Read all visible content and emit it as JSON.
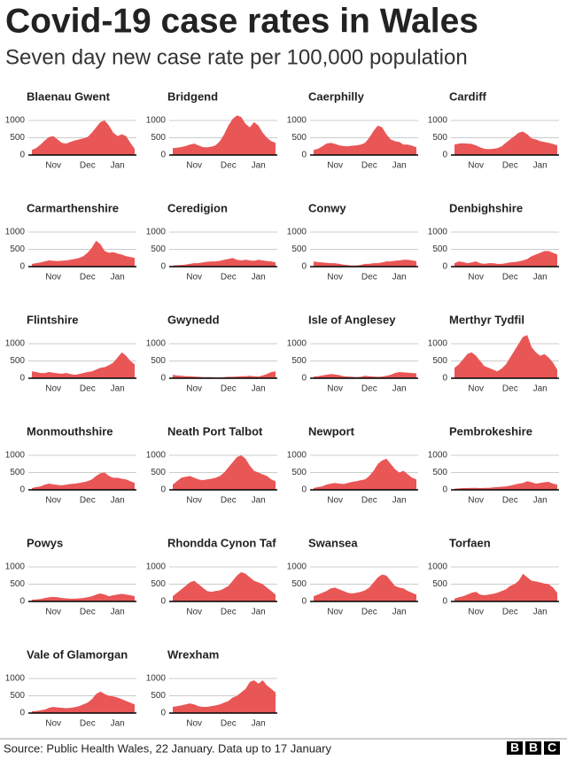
{
  "chart_data": {
    "type": "area",
    "title": "Covid-19 case rates in Wales",
    "subtitle": "Seven day new case rate per 100,000 population",
    "categories": [
      null,
      null,
      null,
      null,
      null,
      "Nov",
      null,
      null,
      null,
      null,
      null,
      null,
      null,
      "Dec",
      null,
      null,
      null,
      null,
      null,
      null,
      "Jan",
      null,
      null,
      null,
      null
    ],
    "ylim": [
      0,
      1300
    ],
    "yticks": [
      0,
      500,
      1000
    ],
    "grid": true,
    "color": "#e95656",
    "series": [
      {
        "name": "Blaenau Gwent",
        "values": [
          150,
          200,
          300,
          420,
          520,
          550,
          450,
          350,
          330,
          380,
          420,
          450,
          480,
          520,
          650,
          800,
          950,
          1000,
          850,
          650,
          550,
          600,
          550,
          350,
          180
        ]
      },
      {
        "name": "Bridgend",
        "values": [
          200,
          210,
          230,
          260,
          300,
          330,
          280,
          230,
          220,
          240,
          280,
          400,
          600,
          850,
          1050,
          1150,
          1100,
          900,
          800,
          950,
          850,
          650,
          500,
          400,
          350
        ]
      },
      {
        "name": "Caerphilly",
        "values": [
          150,
          180,
          250,
          330,
          350,
          320,
          280,
          260,
          250,
          270,
          280,
          300,
          350,
          500,
          700,
          850,
          800,
          600,
          450,
          400,
          380,
          300,
          300,
          270,
          220
        ]
      },
      {
        "name": "Cardiff",
        "values": [
          300,
          330,
          340,
          330,
          320,
          280,
          220,
          180,
          170,
          180,
          200,
          250,
          350,
          450,
          550,
          650,
          680,
          600,
          480,
          450,
          400,
          380,
          350,
          320,
          280
        ]
      },
      {
        "name": "Carmarthenshire",
        "values": [
          80,
          100,
          120,
          150,
          180,
          170,
          160,
          170,
          180,
          200,
          220,
          250,
          300,
          400,
          550,
          750,
          650,
          450,
          400,
          420,
          380,
          350,
          300,
          280,
          250
        ]
      },
      {
        "name": "Ceredigion",
        "values": [
          30,
          40,
          50,
          60,
          80,
          100,
          100,
          120,
          140,
          150,
          150,
          170,
          200,
          220,
          250,
          200,
          180,
          200,
          180,
          170,
          200,
          180,
          160,
          150,
          120
        ]
      },
      {
        "name": "Conwy",
        "values": [
          150,
          130,
          120,
          110,
          100,
          100,
          80,
          60,
          40,
          30,
          30,
          50,
          80,
          80,
          100,
          100,
          120,
          150,
          150,
          170,
          180,
          200,
          200,
          180,
          160
        ]
      },
      {
        "name": "Denbighshire",
        "values": [
          100,
          150,
          130,
          100,
          120,
          150,
          100,
          80,
          100,
          100,
          80,
          80,
          100,
          120,
          130,
          150,
          180,
          220,
          300,
          350,
          400,
          450,
          450,
          400,
          350
        ]
      },
      {
        "name": "Flintshire",
        "values": [
          200,
          180,
          150,
          150,
          180,
          160,
          140,
          130,
          150,
          120,
          100,
          120,
          150,
          180,
          200,
          250,
          300,
          320,
          380,
          450,
          600,
          750,
          650,
          500,
          400
        ]
      },
      {
        "name": "Gwynedd",
        "values": [
          100,
          80,
          70,
          60,
          60,
          50,
          40,
          30,
          30,
          30,
          20,
          20,
          30,
          40,
          40,
          50,
          60,
          60,
          70,
          60,
          50,
          80,
          120,
          180,
          200
        ]
      },
      {
        "name": "Isle of Anglesey",
        "values": [
          50,
          60,
          80,
          100,
          120,
          110,
          90,
          60,
          50,
          40,
          30,
          40,
          70,
          60,
          50,
          40,
          50,
          70,
          100,
          150,
          180,
          170,
          160,
          150,
          140
        ]
      },
      {
        "name": "Merthyr Tydfil",
        "values": [
          300,
          400,
          550,
          700,
          750,
          650,
          500,
          350,
          300,
          250,
          200,
          280,
          400,
          600,
          800,
          1000,
          1200,
          1250,
          900,
          750,
          650,
          700,
          600,
          450,
          250
        ]
      },
      {
        "name": "Monmouthshire",
        "values": [
          50,
          80,
          100,
          150,
          180,
          160,
          140,
          130,
          150,
          170,
          180,
          200,
          220,
          250,
          300,
          400,
          480,
          500,
          400,
          350,
          350,
          320,
          300,
          250,
          200
        ]
      },
      {
        "name": "Neath Port Talbot",
        "values": [
          150,
          250,
          350,
          380,
          400,
          350,
          300,
          280,
          300,
          320,
          350,
          400,
          500,
          650,
          800,
          950,
          1000,
          900,
          700,
          550,
          500,
          450,
          400,
          300,
          250
        ]
      },
      {
        "name": "Newport",
        "values": [
          50,
          80,
          100,
          150,
          180,
          200,
          180,
          170,
          200,
          230,
          250,
          280,
          300,
          400,
          550,
          750,
          850,
          900,
          750,
          600,
          500,
          550,
          450,
          350,
          300
        ]
      },
      {
        "name": "Pembrokeshire",
        "values": [
          30,
          40,
          50,
          50,
          60,
          60,
          50,
          60,
          60,
          70,
          80,
          90,
          100,
          120,
          150,
          180,
          200,
          250,
          220,
          180,
          200,
          220,
          230,
          180,
          150
        ]
      },
      {
        "name": "Powys",
        "values": [
          50,
          60,
          70,
          100,
          120,
          130,
          120,
          100,
          90,
          80,
          80,
          90,
          100,
          120,
          150,
          200,
          230,
          200,
          150,
          180,
          200,
          220,
          200,
          180,
          150
        ]
      },
      {
        "name": "Rhondda Cynon Taf",
        "values": [
          150,
          250,
          350,
          450,
          550,
          600,
          500,
          400,
          300,
          280,
          300,
          320,
          380,
          450,
          600,
          750,
          850,
          800,
          700,
          600,
          550,
          500,
          400,
          300,
          200
        ]
      },
      {
        "name": "Swansea",
        "values": [
          150,
          200,
          250,
          300,
          380,
          400,
          350,
          300,
          250,
          230,
          250,
          280,
          320,
          400,
          550,
          700,
          780,
          750,
          600,
          450,
          400,
          380,
          300,
          250,
          200
        ]
      },
      {
        "name": "Torfaen",
        "values": [
          80,
          120,
          150,
          200,
          250,
          280,
          200,
          180,
          200,
          220,
          250,
          300,
          350,
          450,
          500,
          600,
          800,
          700,
          600,
          580,
          550,
          520,
          500,
          400,
          250
        ]
      },
      {
        "name": "Vale of Glamorgan",
        "values": [
          50,
          60,
          80,
          100,
          150,
          180,
          160,
          150,
          140,
          150,
          170,
          200,
          250,
          300,
          400,
          550,
          620,
          550,
          500,
          480,
          450,
          400,
          350,
          300,
          250
        ]
      },
      {
        "name": "Wrexham",
        "values": [
          180,
          200,
          220,
          250,
          280,
          250,
          200,
          180,
          180,
          200,
          220,
          250,
          300,
          350,
          450,
          500,
          600,
          700,
          900,
          950,
          850,
          950,
          800,
          700,
          600
        ]
      }
    ],
    "source": "Source: Public Health Wales, 22 January. Data up to 17 January",
    "logo": [
      "B",
      "B",
      "C"
    ]
  }
}
